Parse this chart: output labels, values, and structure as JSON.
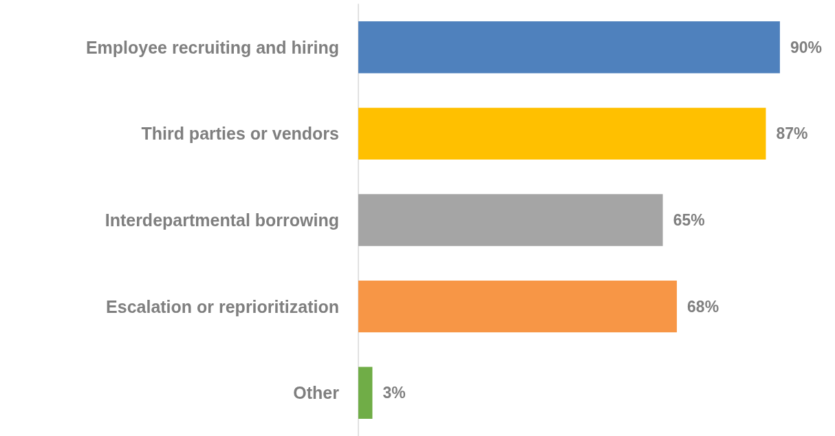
{
  "chart_data": {
    "type": "bar",
    "orientation": "horizontal",
    "categories": [
      "Employee recruiting and hiring",
      "Third parties or vendors",
      "Interdepartmental borrowing",
      "Escalation or reprioritization",
      "Other"
    ],
    "values": [
      90,
      87,
      65,
      68,
      3
    ],
    "colors": [
      "#4f81bd",
      "#ffc000",
      "#a5a5a5",
      "#f79646",
      "#70ad47"
    ],
    "value_labels": [
      "90%",
      "87%",
      "65%",
      "68%",
      "3%"
    ]
  }
}
